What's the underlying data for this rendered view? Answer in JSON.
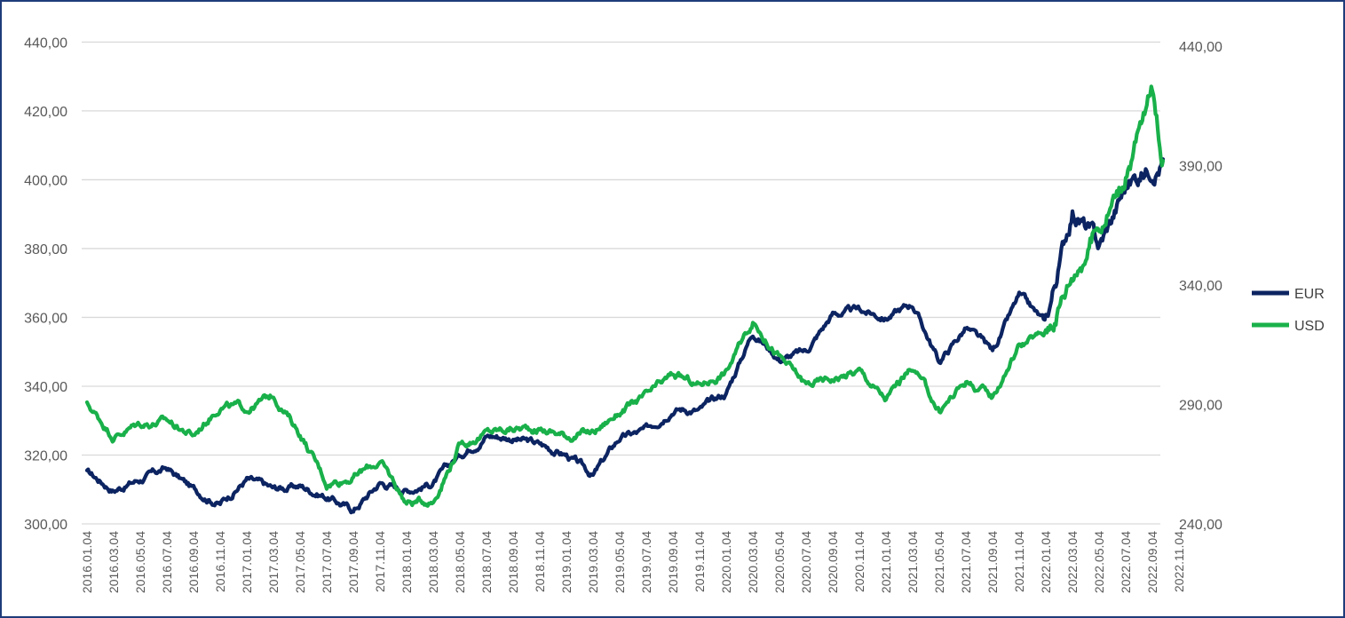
{
  "chart_data": {
    "type": "line",
    "title": "",
    "xlabel": "",
    "ylabel_left": "",
    "ylabel_right": "",
    "y_left": {
      "range": [
        300,
        445
      ],
      "ticks": [
        "300,00",
        "320,00",
        "340,00",
        "360,00",
        "380,00",
        "400,00",
        "420,00",
        "440,00"
      ],
      "tick_values": [
        300,
        320,
        340,
        360,
        380,
        400,
        420,
        440
      ]
    },
    "y_right": {
      "range": [
        240,
        445
      ],
      "ticks": [
        "240,00",
        "290,00",
        "340,00",
        "390,00",
        "440,00"
      ],
      "tick_values": [
        240,
        290,
        340,
        390,
        440
      ]
    },
    "grid": "horizontal",
    "legend_position": "right",
    "x_tick_labels": [
      "2016.01.04",
      "2016.03.04",
      "2016.05.04",
      "2016.07.04",
      "2016.09.04",
      "2016.11.04",
      "2017.01.04",
      "2017.03.04",
      "2017.05.04",
      "2017.07.04",
      "2017.09.04",
      "2017.11.04",
      "2018.01.04",
      "2018.03.04",
      "2018.05.04",
      "2018.07.04",
      "2018.09.04",
      "2018.11.04",
      "2019.01.04",
      "2019.03.04",
      "2019.05.04",
      "2019.07.04",
      "2019.09.04",
      "2019.11.04",
      "2020.01.04",
      "2020.03.04",
      "2020.05.04",
      "2020.07.04",
      "2020.09.04",
      "2020.11.04",
      "2021.01.04",
      "2021.03.04",
      "2021.05.04",
      "2021.07.04",
      "2021.09.04",
      "2021.11.04",
      "2022.01.04",
      "2022.03.04",
      "2022.05.04",
      "2022.07.04",
      "2022.09.04",
      "2022.11.04"
    ],
    "series": [
      {
        "name": "EUR",
        "axis": "left",
        "color": "#0c2461",
        "values": [
          [
            0,
            315
          ],
          [
            1,
            310
          ],
          [
            2,
            313
          ],
          [
            3,
            316
          ],
          [
            4,
            310
          ],
          [
            5,
            306
          ],
          [
            6,
            313
          ],
          [
            7,
            310
          ],
          [
            8,
            311
          ],
          [
            9,
            308
          ],
          [
            10,
            304
          ],
          [
            11,
            312
          ],
          [
            12,
            310
          ],
          [
            13,
            312
          ],
          [
            14,
            320
          ],
          [
            15,
            326
          ],
          [
            16,
            325
          ],
          [
            17,
            323
          ],
          [
            18,
            320
          ],
          [
            19,
            314
          ],
          [
            20,
            325
          ],
          [
            21,
            327
          ],
          [
            22,
            334
          ],
          [
            23,
            333
          ],
          [
            24,
            338
          ],
          [
            25,
            356
          ],
          [
            26,
            348
          ],
          [
            27,
            350
          ],
          [
            28,
            361
          ],
          [
            29,
            362
          ],
          [
            30,
            360
          ],
          [
            31,
            364
          ],
          [
            32,
            347
          ],
          [
            33,
            357
          ],
          [
            34,
            350
          ],
          [
            35,
            366
          ],
          [
            36,
            358
          ],
          [
            37,
            392
          ],
          [
            38,
            380
          ],
          [
            39,
            398
          ],
          [
            40,
            405
          ],
          [
            40.4,
            406
          ]
        ]
      },
      {
        "name": "USD",
        "axis": "right",
        "color": "#19b04a",
        "values": [
          [
            0,
            290
          ],
          [
            1,
            277
          ],
          [
            2,
            282
          ],
          [
            3,
            283
          ],
          [
            4,
            277
          ],
          [
            5,
            290
          ],
          [
            6,
            288
          ],
          [
            7,
            294
          ],
          [
            8,
            278
          ],
          [
            9,
            257
          ],
          [
            10,
            260
          ],
          [
            11,
            266
          ],
          [
            12,
            249
          ],
          [
            13,
            250
          ],
          [
            14,
            273
          ],
          [
            15,
            278
          ],
          [
            16,
            280
          ],
          [
            17,
            280
          ],
          [
            18,
            277
          ],
          [
            19,
            278
          ],
          [
            20,
            287
          ],
          [
            21,
            293
          ],
          [
            22,
            302
          ],
          [
            23,
            298
          ],
          [
            24,
            304
          ],
          [
            25,
            325
          ],
          [
            26,
            310
          ],
          [
            27,
            298
          ],
          [
            28,
            301
          ],
          [
            29,
            304
          ],
          [
            30,
            292
          ],
          [
            31,
            306
          ],
          [
            32,
            287
          ],
          [
            33,
            300
          ],
          [
            34,
            293
          ],
          [
            35,
            315
          ],
          [
            36,
            320
          ],
          [
            37,
            345
          ],
          [
            38,
            365
          ],
          [
            39,
            386
          ],
          [
            40,
            420
          ],
          [
            40.4,
            392
          ]
        ]
      }
    ]
  },
  "legend": {
    "eur_label": "EUR",
    "usd_label": "USD",
    "eur_color": "#0c2461",
    "usd_color": "#19b04a"
  }
}
